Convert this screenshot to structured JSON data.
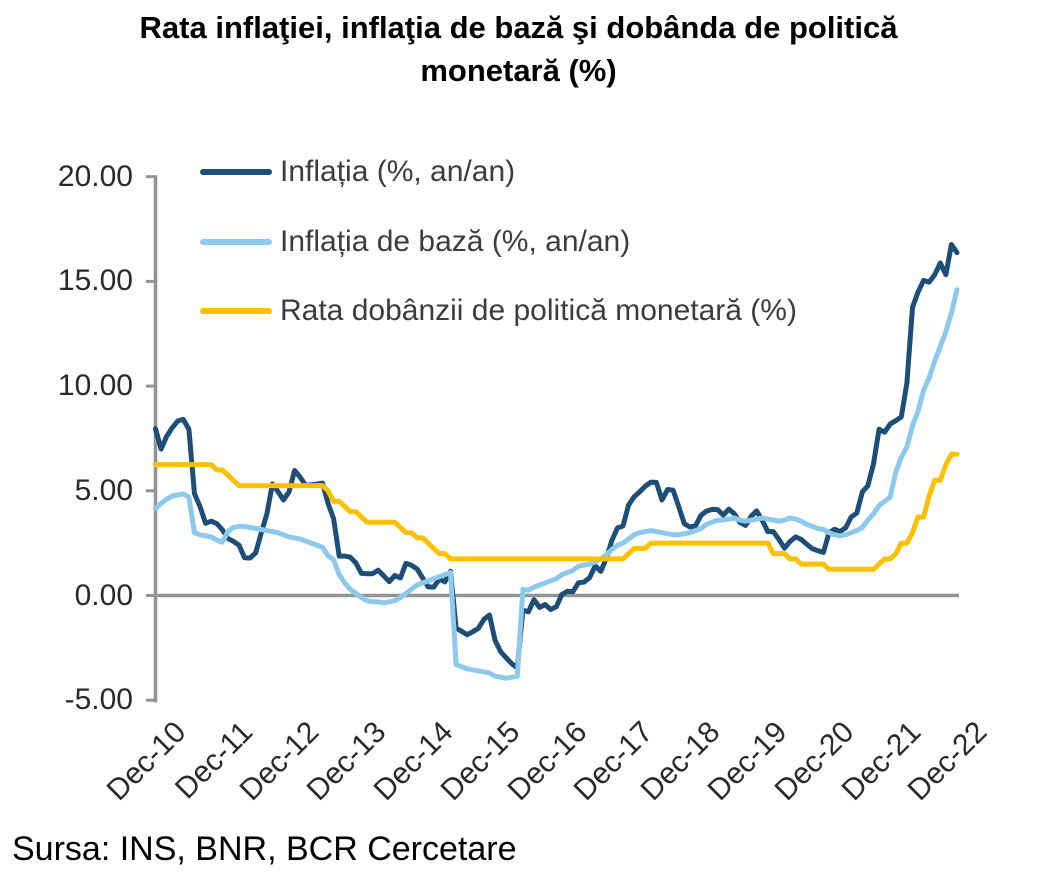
{
  "title": {
    "line1": "Rata inflaţiei, inflaţia de bază şi dobânda de politică",
    "line2": "monetară (%)"
  },
  "source": "Sursa: INS, BNR, BCR Cercetare",
  "chart_data": {
    "type": "line",
    "title": "Rata inflaţiei, inflaţia de bază şi dobânda de politică monetară (%)",
    "x_unit": "month",
    "x_range": [
      "Dec-10",
      "Dec-22"
    ],
    "x_tick_labels": [
      "Dec-10",
      "Dec-11",
      "Dec-12",
      "Dec-13",
      "Dec-14",
      "Dec-15",
      "Dec-16",
      "Dec-17",
      "Dec-18",
      "Dec-19",
      "Dec-20",
      "Dec-21",
      "Dec-22"
    ],
    "ylim": [
      -5,
      20
    ],
    "y_ticks": [
      -5,
      0,
      5,
      10,
      15,
      20
    ],
    "y_tick_labels": [
      "-5.00",
      "0.00",
      "5.00",
      "10.00",
      "15.00",
      "20.00"
    ],
    "grid": "zero-line-only",
    "legend_position": "top-left-inside",
    "axis_color": "#949494",
    "series": [
      {
        "key": "inflatia",
        "name": "Inflația (%, an/an)",
        "color": "#1C4E78",
        "values": [
          7.96,
          6.99,
          7.6,
          8.01,
          8.34,
          8.41,
          7.93,
          4.85,
          4.25,
          3.45,
          3.55,
          3.44,
          3.14,
          2.72,
          2.59,
          2.4,
          1.8,
          1.79,
          2.04,
          3.0,
          3.88,
          5.33,
          4.96,
          4.56,
          4.95,
          5.97,
          5.65,
          5.25,
          5.29,
          5.32,
          5.37,
          4.41,
          3.67,
          1.88,
          1.88,
          1.83,
          1.55,
          1.06,
          1.04,
          1.04,
          1.21,
          0.94,
          0.66,
          0.95,
          0.84,
          1.54,
          1.44,
          1.26,
          0.83,
          0.41,
          0.4,
          0.79,
          0.65,
          1.16,
          -1.55,
          -1.71,
          -1.87,
          -1.73,
          -1.57,
          -1.14,
          -0.93,
          -2.13,
          -2.68,
          -2.98,
          -3.25,
          -3.46,
          -0.7,
          -0.78,
          -0.2,
          -0.57,
          -0.43,
          -0.67,
          -0.54,
          0.05,
          0.2,
          0.18,
          0.61,
          0.64,
          0.85,
          1.42,
          1.15,
          1.77,
          2.63,
          3.23,
          3.32,
          4.32,
          4.72,
          4.95,
          5.22,
          5.41,
          5.4,
          4.56,
          5.06,
          5.03,
          4.25,
          3.43,
          3.27,
          3.32,
          3.83,
          4.03,
          4.11,
          4.1,
          3.84,
          4.12,
          3.9,
          3.49,
          3.35,
          3.78,
          4.04,
          3.6,
          3.05,
          3.05,
          2.68,
          2.26,
          2.58,
          2.8,
          2.68,
          2.45,
          2.24,
          2.14,
          2.06,
          2.99,
          3.16,
          3.05,
          3.24,
          3.75,
          3.94,
          4.95,
          5.25,
          6.29,
          7.94,
          7.8,
          8.19,
          8.35,
          8.53,
          10.15,
          13.76,
          14.49,
          15.05,
          14.96,
          15.32,
          15.88,
          15.32,
          16.76,
          16.37
        ]
      },
      {
        "key": "inflatia-de-baza",
        "name": "Inflația de bază (%, an/an)",
        "color": "#8CC9EC",
        "values": [
          4.15,
          4.4,
          4.6,
          4.75,
          4.8,
          4.85,
          4.7,
          3.0,
          2.9,
          2.85,
          2.8,
          2.65,
          2.55,
          3.05,
          3.25,
          3.3,
          3.3,
          3.25,
          3.2,
          3.15,
          3.1,
          3.05,
          3.0,
          2.9,
          2.8,
          2.75,
          2.7,
          2.6,
          2.5,
          2.4,
          2.3,
          1.9,
          1.7,
          1.0,
          0.6,
          0.3,
          0.1,
          -0.1,
          -0.25,
          -0.3,
          -0.3,
          -0.35,
          -0.3,
          -0.25,
          -0.1,
          0.1,
          0.3,
          0.5,
          0.6,
          0.7,
          0.8,
          0.9,
          1.0,
          1.1,
          -3.3,
          -3.4,
          -3.5,
          -3.55,
          -3.6,
          -3.65,
          -3.7,
          -3.85,
          -3.9,
          -3.95,
          -3.9,
          -3.85,
          0.3,
          0.25,
          0.4,
          0.5,
          0.6,
          0.7,
          0.8,
          1.0,
          1.1,
          1.2,
          1.4,
          1.45,
          1.5,
          1.6,
          1.75,
          1.95,
          2.2,
          2.4,
          2.5,
          2.7,
          2.9,
          3.0,
          3.05,
          3.1,
          3.05,
          3.0,
          2.95,
          2.9,
          2.9,
          2.95,
          3.0,
          3.1,
          3.2,
          3.4,
          3.5,
          3.6,
          3.6,
          3.65,
          3.7,
          3.6,
          3.55,
          3.6,
          3.65,
          3.7,
          3.65,
          3.6,
          3.55,
          3.6,
          3.7,
          3.65,
          3.55,
          3.4,
          3.3,
          3.2,
          3.15,
          3.0,
          2.9,
          2.85,
          2.9,
          3.0,
          3.1,
          3.25,
          3.6,
          3.9,
          4.3,
          4.5,
          4.7,
          5.9,
          6.6,
          7.1,
          8.1,
          8.8,
          9.8,
          10.4,
          11.2,
          11.9,
          12.6,
          13.5,
          14.6
        ]
      },
      {
        "key": "rata-dobanzii",
        "name": "Rata dobânzii de politică monetară (%)",
        "color": "#FFC000",
        "values": [
          6.25,
          6.25,
          6.25,
          6.25,
          6.25,
          6.25,
          6.25,
          6.25,
          6.25,
          6.25,
          6.25,
          6.0,
          6.0,
          5.75,
          5.5,
          5.25,
          5.25,
          5.25,
          5.25,
          5.25,
          5.25,
          5.25,
          5.25,
          5.25,
          5.25,
          5.25,
          5.25,
          5.25,
          5.25,
          5.25,
          5.25,
          5.0,
          4.5,
          4.5,
          4.25,
          4.0,
          4.0,
          3.75,
          3.5,
          3.5,
          3.5,
          3.5,
          3.5,
          3.5,
          3.25,
          3.0,
          3.0,
          2.75,
          2.75,
          2.5,
          2.25,
          2.0,
          2.0,
          1.75,
          1.75,
          1.75,
          1.75,
          1.75,
          1.75,
          1.75,
          1.75,
          1.75,
          1.75,
          1.75,
          1.75,
          1.75,
          1.75,
          1.75,
          1.75,
          1.75,
          1.75,
          1.75,
          1.75,
          1.75,
          1.75,
          1.75,
          1.75,
          1.75,
          1.75,
          1.75,
          1.75,
          1.75,
          1.75,
          1.75,
          1.75,
          2.0,
          2.25,
          2.25,
          2.25,
          2.5,
          2.5,
          2.5,
          2.5,
          2.5,
          2.5,
          2.5,
          2.5,
          2.5,
          2.5,
          2.5,
          2.5,
          2.5,
          2.5,
          2.5,
          2.5,
          2.5,
          2.5,
          2.5,
          2.5,
          2.5,
          2.5,
          2.0,
          2.0,
          2.0,
          1.75,
          1.75,
          1.5,
          1.5,
          1.5,
          1.5,
          1.5,
          1.25,
          1.25,
          1.25,
          1.25,
          1.25,
          1.25,
          1.25,
          1.25,
          1.25,
          1.5,
          1.75,
          1.75,
          2.0,
          2.5,
          2.5,
          3.0,
          3.75,
          3.75,
          4.75,
          5.5,
          5.5,
          6.25,
          6.75,
          6.75
        ]
      }
    ]
  }
}
